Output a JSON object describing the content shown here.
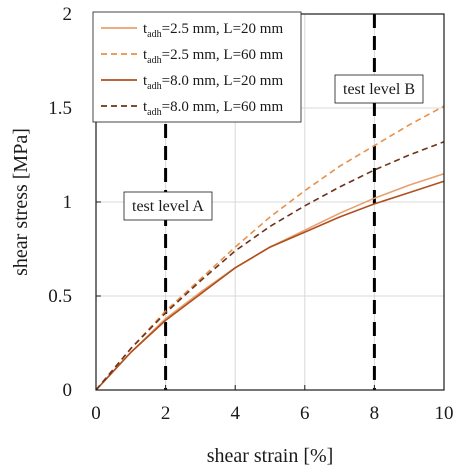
{
  "chart_data": {
    "type": "line",
    "xlabel": "shear strain [%]",
    "ylabel": "shear stress [MPa]",
    "xlim": [
      0,
      10
    ],
    "ylim": [
      0,
      2
    ],
    "xticks": [
      0,
      2,
      4,
      6,
      8,
      10
    ],
    "yticks": [
      0,
      0.5,
      1,
      1.5,
      2
    ],
    "xtick_labels": [
      "0",
      "2",
      "4",
      "6",
      "8",
      "10"
    ],
    "ytick_labels": [
      "0",
      "0.5",
      "1",
      "1.5",
      "2"
    ],
    "grid": true,
    "legend_position": "top-left",
    "series": [
      {
        "name_main": "t",
        "name_sub": "adh",
        "name_rest": "=2.5 mm, L=20 mm",
        "color": "#E8A070",
        "dash": "solid",
        "x": [
          0,
          1,
          2,
          3,
          4,
          5,
          6,
          7,
          8,
          9,
          10
        ],
        "y": [
          0,
          0.2,
          0.38,
          0.52,
          0.65,
          0.76,
          0.85,
          0.94,
          1.02,
          1.09,
          1.15
        ]
      },
      {
        "name_main": "t",
        "name_sub": "adh",
        "name_rest": "=2.5 mm, L=60 mm",
        "color": "#E8904A",
        "dash": "dashed",
        "x": [
          0,
          1,
          2,
          3,
          4,
          5,
          6,
          7,
          8,
          9,
          10
        ],
        "y": [
          0,
          0.22,
          0.42,
          0.59,
          0.76,
          0.92,
          1.06,
          1.19,
          1.3,
          1.41,
          1.51
        ]
      },
      {
        "name_main": "t",
        "name_sub": "adh",
        "name_rest": "=8.0 mm, L=20 mm",
        "color": "#B0501E",
        "dash": "solid",
        "x": [
          0,
          1,
          2,
          3,
          4,
          5,
          6,
          7,
          8,
          9,
          10
        ],
        "y": [
          0,
          0.2,
          0.37,
          0.51,
          0.65,
          0.76,
          0.84,
          0.92,
          0.99,
          1.05,
          1.11
        ]
      },
      {
        "name_main": "t",
        "name_sub": "adh",
        "name_rest": "=8.0 mm, L=60 mm",
        "color": "#6B3418",
        "dash": "dashed",
        "x": [
          0,
          1,
          2,
          3,
          4,
          5,
          6,
          7,
          8,
          9,
          10
        ],
        "y": [
          0,
          0.22,
          0.41,
          0.58,
          0.74,
          0.87,
          0.98,
          1.08,
          1.17,
          1.25,
          1.32
        ]
      }
    ],
    "annotations": [
      {
        "text": "test level A",
        "x": 2
      },
      {
        "text": "test level B",
        "x": 8
      }
    ]
  }
}
